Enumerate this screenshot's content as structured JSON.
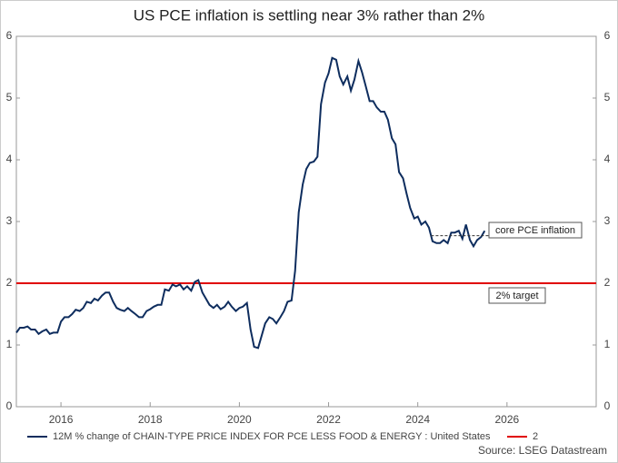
{
  "chart_data": {
    "type": "line",
    "title": "US PCE inflation is settling near 3% rather than 2%",
    "source": "Source: LSEG Datastream",
    "x": [
      2015.0,
      2015.08,
      2015.17,
      2015.25,
      2015.33,
      2015.42,
      2015.5,
      2015.58,
      2015.67,
      2015.75,
      2015.83,
      2015.92,
      2016.0,
      2016.08,
      2016.17,
      2016.25,
      2016.33,
      2016.42,
      2016.5,
      2016.58,
      2016.67,
      2016.75,
      2016.83,
      2016.92,
      2017.0,
      2017.08,
      2017.17,
      2017.25,
      2017.33,
      2017.42,
      2017.5,
      2017.58,
      2017.67,
      2017.75,
      2017.83,
      2017.92,
      2018.0,
      2018.08,
      2018.17,
      2018.25,
      2018.33,
      2018.42,
      2018.5,
      2018.58,
      2018.67,
      2018.75,
      2018.83,
      2018.92,
      2019.0,
      2019.08,
      2019.17,
      2019.25,
      2019.33,
      2019.42,
      2019.5,
      2019.58,
      2019.67,
      2019.75,
      2019.83,
      2019.92,
      2020.0,
      2020.08,
      2020.17,
      2020.25,
      2020.33,
      2020.42,
      2020.5,
      2020.58,
      2020.67,
      2020.75,
      2020.83,
      2020.92,
      2021.0,
      2021.08,
      2021.17,
      2021.25,
      2021.33,
      2021.42,
      2021.5,
      2021.58,
      2021.67,
      2021.75,
      2021.83,
      2021.92,
      2022.0,
      2022.08,
      2022.17,
      2022.25,
      2022.33,
      2022.42,
      2022.5,
      2022.58,
      2022.67,
      2022.75,
      2022.83,
      2022.92,
      2023.0,
      2023.08,
      2023.17,
      2023.25,
      2023.33,
      2023.42,
      2023.5,
      2023.58,
      2023.67,
      2023.75,
      2023.83,
      2023.92,
      2024.0,
      2024.08,
      2024.17,
      2024.25,
      2024.33,
      2024.42,
      2024.5,
      2024.58,
      2024.67,
      2024.75,
      2024.83,
      2024.92,
      2025.0,
      2025.08,
      2025.17,
      2025.25,
      2025.33,
      2025.42,
      2025.5
    ],
    "series": [
      {
        "name": "12M % change of CHAIN-TYPE PRICE INDEX FOR PCE LESS FOOD & ENERGY : United States",
        "color": "#0e2d5e",
        "values": [
          1.2,
          1.28,
          1.28,
          1.3,
          1.25,
          1.25,
          1.18,
          1.22,
          1.25,
          1.18,
          1.2,
          1.2,
          1.38,
          1.45,
          1.45,
          1.5,
          1.57,
          1.55,
          1.6,
          1.7,
          1.68,
          1.75,
          1.72,
          1.8,
          1.85,
          1.85,
          1.7,
          1.6,
          1.57,
          1.55,
          1.6,
          1.55,
          1.5,
          1.45,
          1.45,
          1.55,
          1.58,
          1.62,
          1.65,
          1.65,
          1.9,
          1.88,
          1.98,
          1.95,
          1.98,
          1.9,
          1.95,
          1.88,
          2.02,
          2.05,
          1.85,
          1.75,
          1.65,
          1.6,
          1.65,
          1.58,
          1.62,
          1.7,
          1.62,
          1.55,
          1.6,
          1.62,
          1.68,
          1.25,
          0.97,
          0.95,
          1.15,
          1.35,
          1.45,
          1.42,
          1.35,
          1.45,
          1.55,
          1.7,
          1.72,
          2.2,
          3.15,
          3.6,
          3.85,
          3.95,
          3.97,
          4.05,
          4.9,
          5.25,
          5.4,
          5.65,
          5.62,
          5.35,
          5.22,
          5.35,
          5.12,
          5.3,
          5.6,
          5.42,
          5.2,
          4.95,
          4.95,
          4.85,
          4.78,
          4.78,
          4.65,
          4.35,
          4.25,
          3.8,
          3.7,
          3.45,
          3.22,
          3.05,
          3.08,
          2.95,
          3.0,
          2.9,
          2.68,
          2.65,
          2.65,
          2.7,
          2.65,
          2.82,
          2.82,
          2.85,
          2.72,
          2.95,
          2.7,
          2.6,
          2.7,
          2.75,
          2.85
        ]
      }
    ],
    "reference_line": {
      "name": "2",
      "value": 2,
      "color": "#e00000"
    },
    "annotations": [
      {
        "text": "core PCE inflation",
        "x": 2024.3,
        "y": 2.77
      },
      {
        "text": "2% target"
      }
    ],
    "xlim": [
      2015,
      2028
    ],
    "xticks": [
      2016,
      2018,
      2020,
      2022,
      2024,
      2026
    ],
    "ylim": [
      0,
      6
    ],
    "yticks": [
      0,
      1,
      2,
      3,
      4,
      5,
      6
    ],
    "y2lim": [
      0,
      6
    ],
    "y2ticks": [
      0,
      1,
      2,
      3,
      4,
      5,
      6
    ]
  }
}
